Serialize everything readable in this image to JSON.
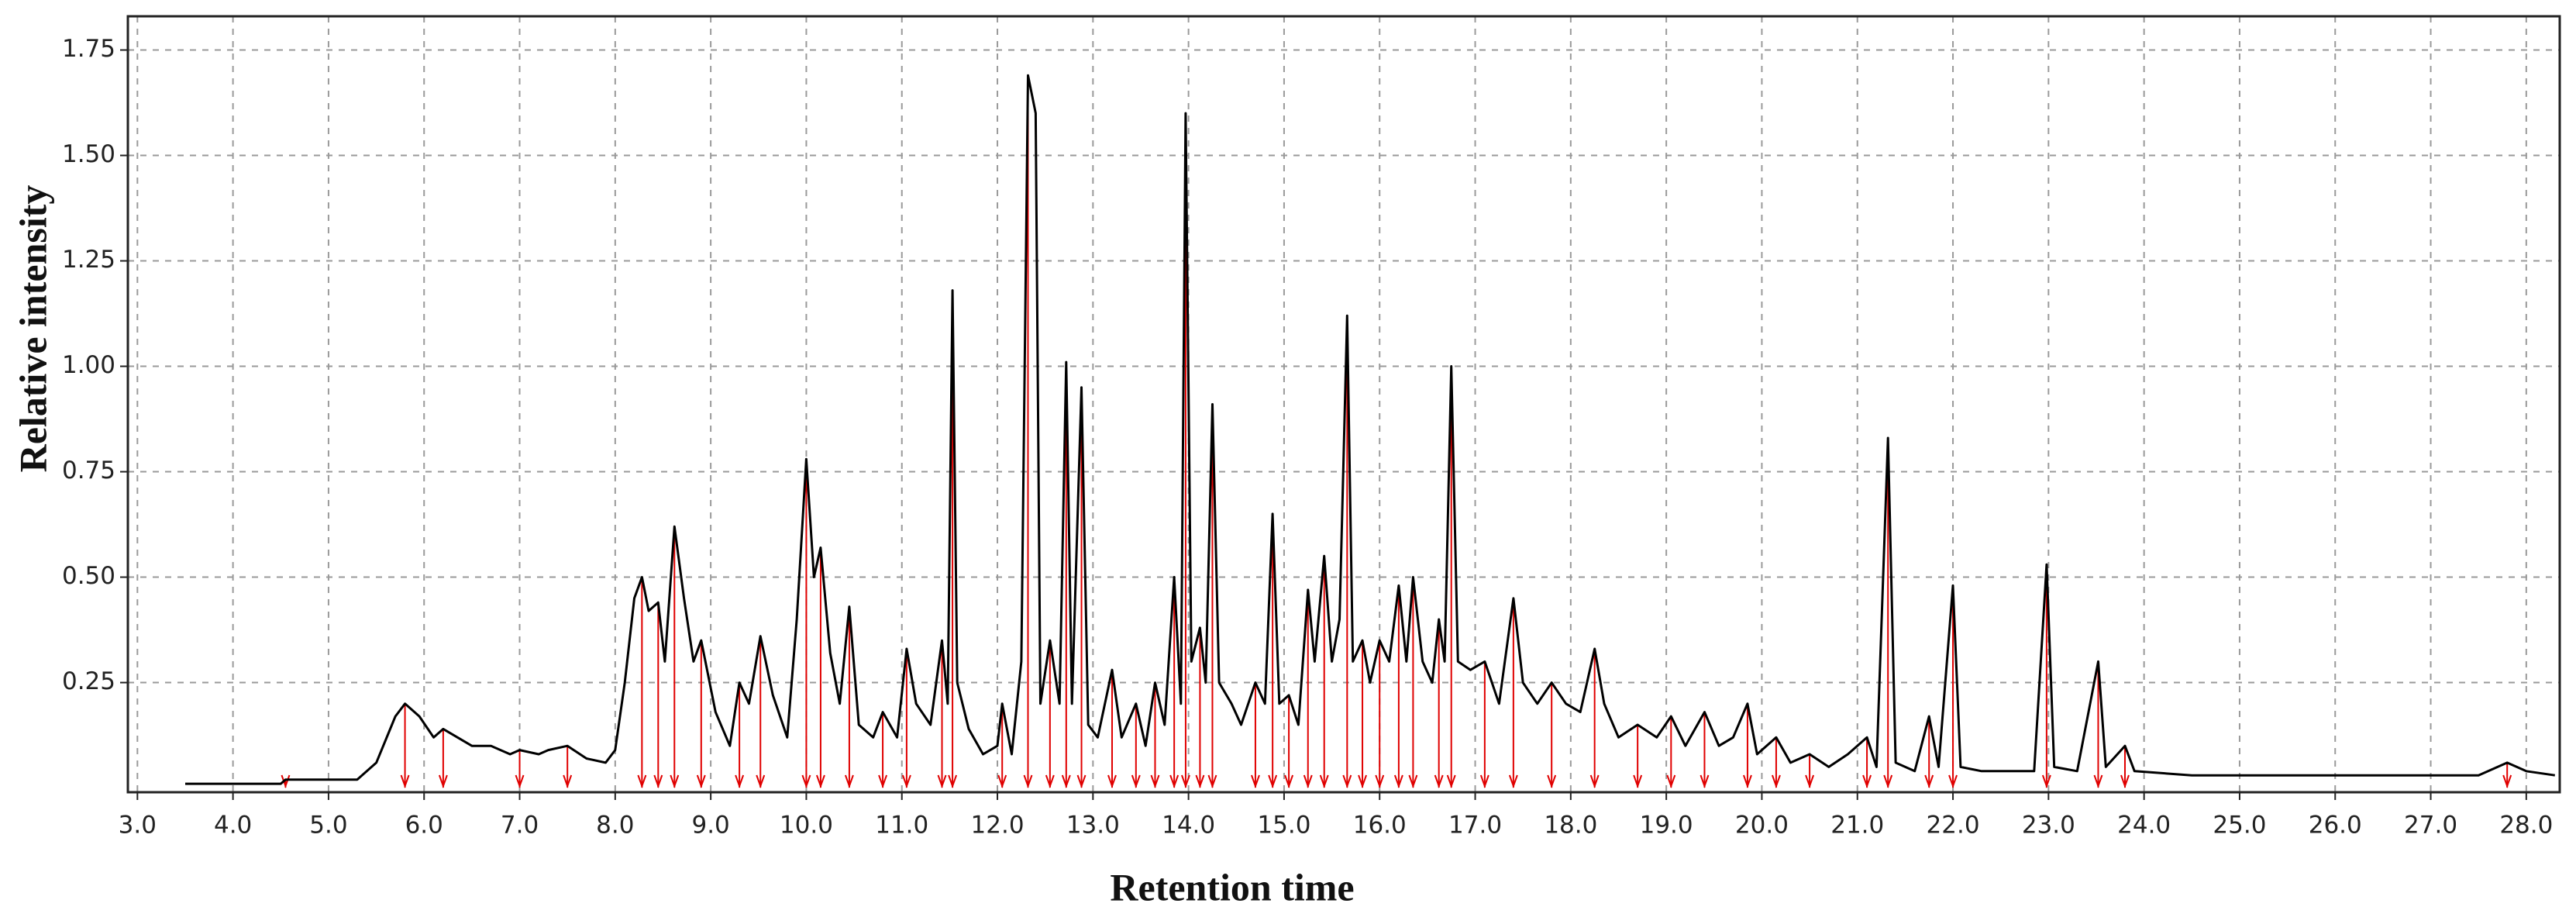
{
  "chart_data": {
    "type": "line",
    "xlabel": "Retention time",
    "ylabel": "Relative intensity",
    "color": "#000000",
    "peak_marker_color": "#e00000",
    "grid": true,
    "xlim": [
      2.9,
      28.35
    ],
    "ylim": [
      -0.01,
      1.83
    ],
    "xticks": [
      {
        "value": 3,
        "label": "3.0"
      },
      {
        "value": 4,
        "label": "4.0"
      },
      {
        "value": 5,
        "label": "5.0"
      },
      {
        "value": 6,
        "label": "6.0"
      },
      {
        "value": 7,
        "label": "7.0"
      },
      {
        "value": 8,
        "label": "8.0"
      },
      {
        "value": 9,
        "label": "9.0"
      },
      {
        "value": 10,
        "label": "10.0"
      },
      {
        "value": 11,
        "label": "11.0"
      },
      {
        "value": 12,
        "label": "12.0"
      },
      {
        "value": 13,
        "label": "13.0"
      },
      {
        "value": 14,
        "label": "14.0"
      },
      {
        "value": 15,
        "label": "15.0"
      },
      {
        "value": 16,
        "label": "16.0"
      },
      {
        "value": 17,
        "label": "17.0"
      },
      {
        "value": 18,
        "label": "18.0"
      },
      {
        "value": 19,
        "label": "19.0"
      },
      {
        "value": 20,
        "label": "20.0"
      },
      {
        "value": 21,
        "label": "21.0"
      },
      {
        "value": 22,
        "label": "22.0"
      },
      {
        "value": 23,
        "label": "23.0"
      },
      {
        "value": 24,
        "label": "24.0"
      },
      {
        "value": 25,
        "label": "25.0"
      },
      {
        "value": 26,
        "label": "26.0"
      },
      {
        "value": 27,
        "label": "27.0"
      },
      {
        "value": 28,
        "label": "28.0"
      }
    ],
    "yticks": [
      0.25,
      {
        "value": 0.5,
        "label": "0.50"
      },
      0.75,
      {
        "value": 1,
        "label": "1.00"
      },
      1.25,
      {
        "value": 1.5,
        "label": "1.50"
      },
      1.75
    ],
    "x": [
      3.5,
      4.5,
      4.55,
      5.3,
      5.5,
      5.7,
      5.8,
      5.95,
      6.1,
      6.2,
      6.35,
      6.5,
      6.7,
      6.9,
      7.0,
      7.2,
      7.3,
      7.5,
      7.7,
      7.9,
      8.0,
      8.1,
      8.2,
      8.28,
      8.35,
      8.45,
      8.52,
      8.62,
      8.72,
      8.82,
      8.9,
      9.05,
      9.2,
      9.3,
      9.4,
      9.52,
      9.65,
      9.8,
      9.9,
      10.0,
      10.08,
      10.15,
      10.25,
      10.35,
      10.45,
      10.55,
      10.7,
      10.8,
      10.95,
      11.05,
      11.15,
      11.3,
      11.42,
      11.48,
      11.53,
      11.58,
      11.7,
      11.85,
      12.0,
      12.05,
      12.15,
      12.25,
      12.32,
      12.4,
      12.45,
      12.55,
      12.65,
      12.72,
      12.78,
      12.88,
      12.95,
      13.05,
      13.2,
      13.3,
      13.45,
      13.55,
      13.65,
      13.75,
      13.85,
      13.92,
      13.97,
      14.03,
      14.12,
      14.18,
      14.25,
      14.32,
      14.45,
      14.55,
      14.7,
      14.8,
      14.88,
      14.95,
      15.05,
      15.15,
      15.25,
      15.32,
      15.42,
      15.5,
      15.58,
      15.66,
      15.72,
      15.82,
      15.9,
      16.0,
      16.1,
      16.2,
      16.28,
      16.35,
      16.45,
      16.55,
      16.62,
      16.68,
      16.75,
      16.82,
      16.95,
      17.1,
      17.25,
      17.4,
      17.5,
      17.65,
      17.8,
      17.95,
      18.1,
      18.25,
      18.35,
      18.5,
      18.7,
      18.9,
      19.05,
      19.2,
      19.4,
      19.55,
      19.7,
      19.85,
      19.95,
      20.15,
      20.3,
      20.5,
      20.7,
      20.9,
      21.1,
      21.2,
      21.32,
      21.4,
      21.6,
      21.75,
      21.85,
      22.0,
      22.08,
      22.3,
      22.6,
      22.85,
      22.98,
      23.06,
      23.3,
      23.52,
      23.6,
      23.8,
      23.9,
      24.5,
      25.5,
      26.5,
      27.5,
      27.8,
      28.0,
      28.3
    ],
    "values": [
      0.01,
      0.01,
      0.02,
      0.02,
      0.06,
      0.17,
      0.2,
      0.17,
      0.12,
      0.14,
      0.12,
      0.1,
      0.1,
      0.08,
      0.09,
      0.08,
      0.09,
      0.1,
      0.07,
      0.06,
      0.09,
      0.25,
      0.45,
      0.5,
      0.42,
      0.44,
      0.3,
      0.62,
      0.45,
      0.3,
      0.35,
      0.18,
      0.1,
      0.25,
      0.2,
      0.36,
      0.22,
      0.12,
      0.4,
      0.78,
      0.5,
      0.57,
      0.32,
      0.2,
      0.43,
      0.15,
      0.12,
      0.18,
      0.12,
      0.33,
      0.2,
      0.15,
      0.35,
      0.2,
      1.18,
      0.25,
      0.14,
      0.08,
      0.1,
      0.2,
      0.08,
      0.3,
      1.69,
      1.6,
      0.2,
      0.35,
      0.2,
      1.01,
      0.2,
      0.95,
      0.15,
      0.12,
      0.28,
      0.12,
      0.2,
      0.1,
      0.25,
      0.15,
      0.5,
      0.2,
      1.6,
      0.3,
      0.38,
      0.25,
      0.91,
      0.25,
      0.2,
      0.15,
      0.25,
      0.2,
      0.65,
      0.2,
      0.22,
      0.15,
      0.47,
      0.3,
      0.55,
      0.3,
      0.4,
      1.12,
      0.3,
      0.35,
      0.25,
      0.35,
      0.3,
      0.48,
      0.3,
      0.5,
      0.3,
      0.25,
      0.4,
      0.3,
      1.0,
      0.3,
      0.28,
      0.3,
      0.2,
      0.45,
      0.25,
      0.2,
      0.25,
      0.2,
      0.18,
      0.33,
      0.2,
      0.12,
      0.15,
      0.12,
      0.17,
      0.1,
      0.18,
      0.1,
      0.12,
      0.2,
      0.08,
      0.12,
      0.06,
      0.08,
      0.05,
      0.08,
      0.12,
      0.05,
      0.83,
      0.06,
      0.04,
      0.17,
      0.05,
      0.48,
      0.05,
      0.04,
      0.04,
      0.04,
      0.53,
      0.05,
      0.04,
      0.3,
      0.05,
      0.1,
      0.04,
      0.03,
      0.03,
      0.03,
      0.03,
      0.06,
      0.04,
      0.03
    ]
  }
}
